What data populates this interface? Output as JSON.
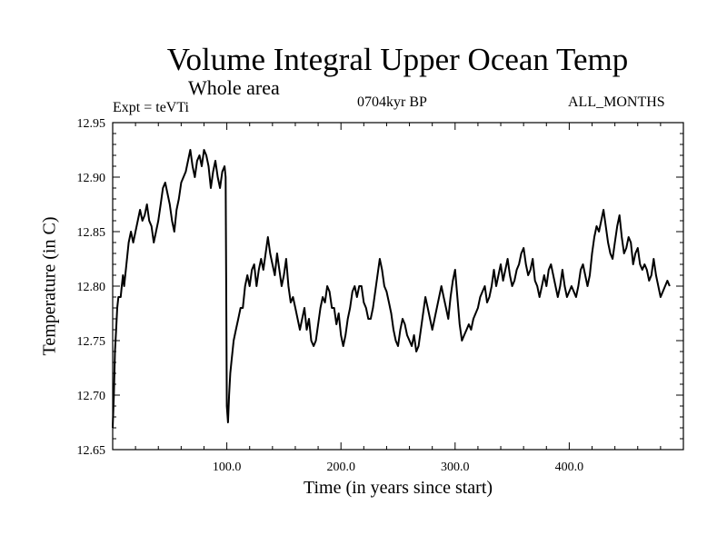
{
  "chart_data": {
    "type": "line",
    "title": "Volume Integral Upper Ocean Temp",
    "subtitle": "Whole area",
    "annotations": {
      "expt": "Expt = teVTi",
      "period": "0704kyr BP",
      "months": "ALL_MONTHS"
    },
    "xlabel": "Time (in years since start)",
    "ylabel": "Temperature (in C)",
    "xlim": [
      0,
      500
    ],
    "ylim": [
      12.65,
      12.95
    ],
    "x_ticks": [
      {
        "value": 100,
        "label": "100.0"
      },
      {
        "value": 200,
        "label": "200.0"
      },
      {
        "value": 300,
        "label": "300.0"
      },
      {
        "value": 400,
        "label": "400.0"
      }
    ],
    "y_ticks": [
      {
        "value": 12.65,
        "label": "12.65"
      },
      {
        "value": 12.7,
        "label": "12.70"
      },
      {
        "value": 12.75,
        "label": "12.75"
      },
      {
        "value": 12.8,
        "label": "12.80"
      },
      {
        "value": 12.85,
        "label": "12.85"
      },
      {
        "value": 12.9,
        "label": "12.90"
      },
      {
        "value": 12.95,
        "label": "12.95"
      }
    ],
    "grid": false,
    "series": [
      {
        "color": "#000000",
        "points": [
          [
            0,
            12.67
          ],
          [
            1,
            12.7
          ],
          [
            2,
            12.74
          ],
          [
            3,
            12.76
          ],
          [
            4,
            12.78
          ],
          [
            5,
            12.79
          ],
          [
            7,
            12.79
          ],
          [
            8,
            12.8
          ],
          [
            9,
            12.81
          ],
          [
            10,
            12.8
          ],
          [
            12,
            12.82
          ],
          [
            14,
            12.84
          ],
          [
            16,
            12.85
          ],
          [
            18,
            12.84
          ],
          [
            20,
            12.85
          ],
          [
            22,
            12.86
          ],
          [
            24,
            12.87
          ],
          [
            26,
            12.86
          ],
          [
            28,
            12.865
          ],
          [
            30,
            12.875
          ],
          [
            32,
            12.86
          ],
          [
            34,
            12.855
          ],
          [
            36,
            12.84
          ],
          [
            38,
            12.85
          ],
          [
            40,
            12.86
          ],
          [
            42,
            12.875
          ],
          [
            44,
            12.89
          ],
          [
            46,
            12.895
          ],
          [
            48,
            12.885
          ],
          [
            50,
            12.875
          ],
          [
            52,
            12.86
          ],
          [
            54,
            12.85
          ],
          [
            56,
            12.87
          ],
          [
            58,
            12.88
          ],
          [
            60,
            12.895
          ],
          [
            62,
            12.9
          ],
          [
            64,
            12.905
          ],
          [
            66,
            12.915
          ],
          [
            68,
            12.925
          ],
          [
            70,
            12.91
          ],
          [
            72,
            12.9
          ],
          [
            74,
            12.915
          ],
          [
            76,
            12.92
          ],
          [
            78,
            12.91
          ],
          [
            80,
            12.925
          ],
          [
            82,
            12.92
          ],
          [
            84,
            12.91
          ],
          [
            86,
            12.89
          ],
          [
            88,
            12.905
          ],
          [
            90,
            12.915
          ],
          [
            92,
            12.9
          ],
          [
            94,
            12.89
          ],
          [
            96,
            12.905
          ],
          [
            98,
            12.91
          ],
          [
            99,
            12.9
          ],
          [
            100,
            12.69
          ],
          [
            101,
            12.675
          ],
          [
            102,
            12.7
          ],
          [
            103,
            12.72
          ],
          [
            104,
            12.73
          ],
          [
            106,
            12.75
          ],
          [
            108,
            12.76
          ],
          [
            110,
            12.77
          ],
          [
            112,
            12.78
          ],
          [
            114,
            12.78
          ],
          [
            116,
            12.8
          ],
          [
            118,
            12.81
          ],
          [
            120,
            12.8
          ],
          [
            122,
            12.815
          ],
          [
            124,
            12.82
          ],
          [
            126,
            12.8
          ],
          [
            128,
            12.815
          ],
          [
            130,
            12.825
          ],
          [
            132,
            12.815
          ],
          [
            134,
            12.83
          ],
          [
            136,
            12.845
          ],
          [
            138,
            12.83
          ],
          [
            140,
            12.82
          ],
          [
            142,
            12.81
          ],
          [
            144,
            12.83
          ],
          [
            146,
            12.815
          ],
          [
            148,
            12.8
          ],
          [
            150,
            12.81
          ],
          [
            152,
            12.825
          ],
          [
            154,
            12.8
          ],
          [
            156,
            12.785
          ],
          [
            158,
            12.79
          ],
          [
            160,
            12.78
          ],
          [
            162,
            12.77
          ],
          [
            164,
            12.76
          ],
          [
            166,
            12.77
          ],
          [
            168,
            12.78
          ],
          [
            170,
            12.76
          ],
          [
            172,
            12.77
          ],
          [
            174,
            12.75
          ],
          [
            176,
            12.745
          ],
          [
            178,
            12.75
          ],
          [
            180,
            12.765
          ],
          [
            182,
            12.78
          ],
          [
            184,
            12.79
          ],
          [
            186,
            12.785
          ],
          [
            188,
            12.8
          ],
          [
            190,
            12.795
          ],
          [
            192,
            12.78
          ],
          [
            194,
            12.78
          ],
          [
            196,
            12.765
          ],
          [
            198,
            12.775
          ],
          [
            200,
            12.755
          ],
          [
            202,
            12.745
          ],
          [
            204,
            12.755
          ],
          [
            206,
            12.77
          ],
          [
            208,
            12.78
          ],
          [
            210,
            12.795
          ],
          [
            212,
            12.8
          ],
          [
            214,
            12.79
          ],
          [
            216,
            12.8
          ],
          [
            218,
            12.8
          ],
          [
            220,
            12.785
          ],
          [
            222,
            12.78
          ],
          [
            224,
            12.77
          ],
          [
            226,
            12.77
          ],
          [
            228,
            12.78
          ],
          [
            230,
            12.795
          ],
          [
            232,
            12.81
          ],
          [
            234,
            12.825
          ],
          [
            236,
            12.815
          ],
          [
            238,
            12.8
          ],
          [
            240,
            12.795
          ],
          [
            242,
            12.785
          ],
          [
            244,
            12.775
          ],
          [
            246,
            12.76
          ],
          [
            248,
            12.75
          ],
          [
            250,
            12.745
          ],
          [
            252,
            12.76
          ],
          [
            254,
            12.77
          ],
          [
            256,
            12.765
          ],
          [
            258,
            12.755
          ],
          [
            260,
            12.75
          ],
          [
            262,
            12.745
          ],
          [
            264,
            12.755
          ],
          [
            266,
            12.74
          ],
          [
            268,
            12.745
          ],
          [
            270,
            12.76
          ],
          [
            272,
            12.775
          ],
          [
            274,
            12.79
          ],
          [
            276,
            12.78
          ],
          [
            278,
            12.77
          ],
          [
            280,
            12.76
          ],
          [
            282,
            12.77
          ],
          [
            284,
            12.78
          ],
          [
            286,
            12.79
          ],
          [
            288,
            12.8
          ],
          [
            290,
            12.79
          ],
          [
            292,
            12.78
          ],
          [
            294,
            12.77
          ],
          [
            296,
            12.79
          ],
          [
            298,
            12.805
          ],
          [
            300,
            12.815
          ],
          [
            302,
            12.79
          ],
          [
            304,
            12.765
          ],
          [
            306,
            12.75
          ],
          [
            308,
            12.755
          ],
          [
            310,
            12.76
          ],
          [
            312,
            12.765
          ],
          [
            314,
            12.76
          ],
          [
            316,
            12.77
          ],
          [
            318,
            12.775
          ],
          [
            320,
            12.78
          ],
          [
            322,
            12.79
          ],
          [
            324,
            12.795
          ],
          [
            326,
            12.8
          ],
          [
            328,
            12.785
          ],
          [
            330,
            12.79
          ],
          [
            332,
            12.8
          ],
          [
            334,
            12.815
          ],
          [
            336,
            12.8
          ],
          [
            338,
            12.81
          ],
          [
            340,
            12.82
          ],
          [
            342,
            12.805
          ],
          [
            344,
            12.815
          ],
          [
            346,
            12.825
          ],
          [
            348,
            12.81
          ],
          [
            350,
            12.8
          ],
          [
            352,
            12.805
          ],
          [
            354,
            12.815
          ],
          [
            356,
            12.82
          ],
          [
            358,
            12.83
          ],
          [
            360,
            12.835
          ],
          [
            362,
            12.82
          ],
          [
            364,
            12.81
          ],
          [
            366,
            12.815
          ],
          [
            368,
            12.825
          ],
          [
            370,
            12.805
          ],
          [
            372,
            12.8
          ],
          [
            374,
            12.79
          ],
          [
            376,
            12.8
          ],
          [
            378,
            12.81
          ],
          [
            380,
            12.8
          ],
          [
            382,
            12.815
          ],
          [
            384,
            12.82
          ],
          [
            386,
            12.81
          ],
          [
            388,
            12.8
          ],
          [
            390,
            12.79
          ],
          [
            392,
            12.8
          ],
          [
            394,
            12.815
          ],
          [
            396,
            12.8
          ],
          [
            398,
            12.79
          ],
          [
            400,
            12.795
          ],
          [
            402,
            12.8
          ],
          [
            404,
            12.795
          ],
          [
            406,
            12.79
          ],
          [
            408,
            12.8
          ],
          [
            410,
            12.815
          ],
          [
            412,
            12.82
          ],
          [
            414,
            12.81
          ],
          [
            416,
            12.8
          ],
          [
            418,
            12.81
          ],
          [
            420,
            12.83
          ],
          [
            422,
            12.845
          ],
          [
            424,
            12.855
          ],
          [
            426,
            12.85
          ],
          [
            428,
            12.86
          ],
          [
            430,
            12.87
          ],
          [
            432,
            12.855
          ],
          [
            434,
            12.84
          ],
          [
            436,
            12.83
          ],
          [
            438,
            12.825
          ],
          [
            440,
            12.84
          ],
          [
            442,
            12.855
          ],
          [
            444,
            12.865
          ],
          [
            446,
            12.845
          ],
          [
            448,
            12.83
          ],
          [
            450,
            12.835
          ],
          [
            452,
            12.845
          ],
          [
            454,
            12.84
          ],
          [
            456,
            12.82
          ],
          [
            458,
            12.83
          ],
          [
            460,
            12.835
          ],
          [
            462,
            12.82
          ],
          [
            464,
            12.815
          ],
          [
            466,
            12.82
          ],
          [
            468,
            12.815
          ],
          [
            470,
            12.805
          ],
          [
            472,
            12.81
          ],
          [
            474,
            12.825
          ],
          [
            476,
            12.81
          ],
          [
            478,
            12.8
          ],
          [
            480,
            12.79
          ],
          [
            482,
            12.795
          ],
          [
            484,
            12.8
          ],
          [
            486,
            12.805
          ],
          [
            488,
            12.8
          ]
        ]
      }
    ]
  }
}
